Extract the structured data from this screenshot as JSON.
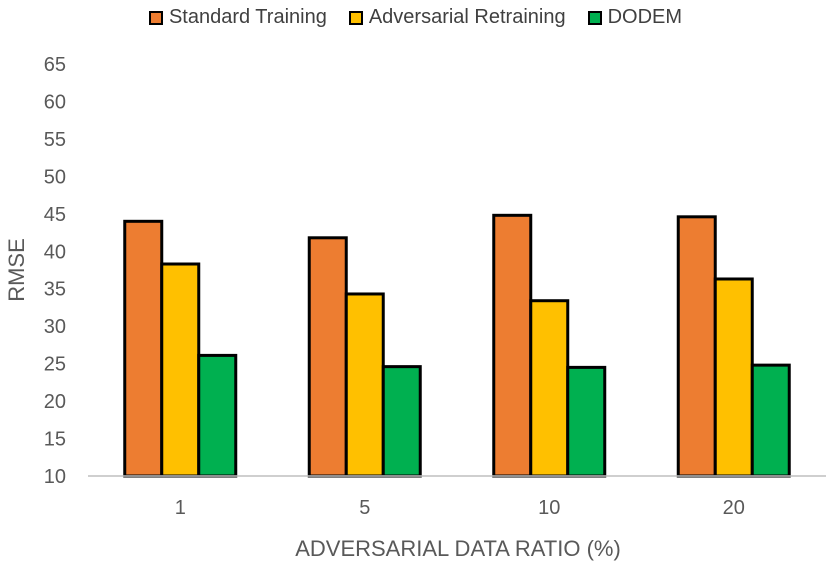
{
  "chart_data": {
    "type": "bar",
    "xlabel": "ADVERSARIAL DATA RATIO (%)",
    "ylabel": "RMSE",
    "categories": [
      "1",
      "5",
      "10",
      "20"
    ],
    "ylim": [
      10,
      65
    ],
    "yticks": [
      "10",
      "15",
      "20",
      "25",
      "30",
      "35",
      "40",
      "45",
      "50",
      "55",
      "60",
      "65"
    ],
    "grid": false,
    "legend_position": "top",
    "series": [
      {
        "name": "Standard Training",
        "color": "#ED7D31",
        "values": [
          44.0,
          41.8,
          44.8,
          44.6
        ]
      },
      {
        "name": "Adversarial Retraining",
        "color": "#FFC000",
        "values": [
          38.3,
          34.3,
          33.4,
          36.3
        ]
      },
      {
        "name": "DODEM",
        "color": "#00B050",
        "values": [
          26.1,
          24.6,
          24.5,
          24.8
        ]
      }
    ]
  }
}
